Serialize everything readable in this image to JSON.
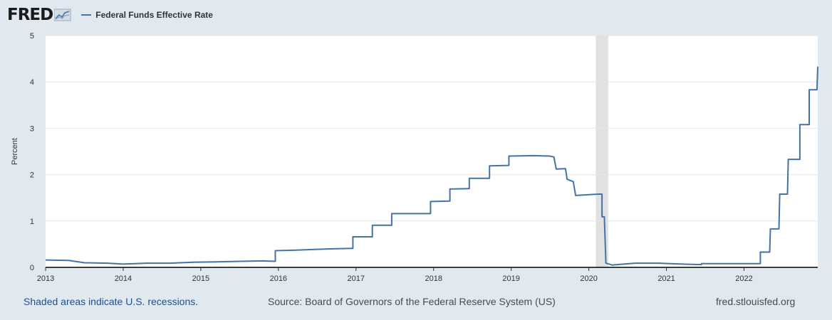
{
  "header": {
    "logo_text": "FRED",
    "legend_label": "Federal Funds Effective Rate"
  },
  "footer": {
    "recession_note": "Shaded areas indicate U.S. recessions.",
    "source": "Source: Board of Governors of the Federal Reserve System (US)",
    "site": "fred.stlouisfed.org"
  },
  "colors": {
    "series": "#4572a7",
    "background": "#e1e9f0",
    "plot": "#ffffff",
    "recession": "#e1e1e1"
  },
  "chart_data": {
    "type": "line",
    "title": "Federal Funds Effective Rate",
    "ylabel": "Percent",
    "xlabel": "",
    "xlim": [
      2013.0,
      2022.95
    ],
    "ylim": [
      0,
      5
    ],
    "x_ticks": [
      "2013",
      "2014",
      "2015",
      "2016",
      "2017",
      "2018",
      "2019",
      "2020",
      "2021",
      "2022"
    ],
    "y_ticks": [
      "0",
      "1",
      "2",
      "3",
      "4",
      "5"
    ],
    "grid": "horizontal",
    "recessions": [
      [
        2020.09,
        2020.25
      ]
    ],
    "series": [
      {
        "name": "Federal Funds Effective Rate",
        "points": [
          [
            2013.0,
            0.16
          ],
          [
            2013.3,
            0.15
          ],
          [
            2013.5,
            0.1
          ],
          [
            2013.8,
            0.09
          ],
          [
            2014.0,
            0.07
          ],
          [
            2014.3,
            0.09
          ],
          [
            2014.6,
            0.09
          ],
          [
            2014.9,
            0.11
          ],
          [
            2015.2,
            0.12
          ],
          [
            2015.5,
            0.13
          ],
          [
            2015.8,
            0.14
          ],
          [
            2015.96,
            0.13
          ],
          [
            2015.96,
            0.36
          ],
          [
            2016.2,
            0.37
          ],
          [
            2016.5,
            0.39
          ],
          [
            2016.7,
            0.4
          ],
          [
            2016.96,
            0.41
          ],
          [
            2016.96,
            0.66
          ],
          [
            2017.2,
            0.66
          ],
          [
            2017.21,
            0.66
          ],
          [
            2017.21,
            0.91
          ],
          [
            2017.45,
            0.91
          ],
          [
            2017.46,
            0.91
          ],
          [
            2017.46,
            1.16
          ],
          [
            2017.96,
            1.16
          ],
          [
            2017.96,
            1.42
          ],
          [
            2018.21,
            1.43
          ],
          [
            2018.21,
            1.69
          ],
          [
            2018.45,
            1.7
          ],
          [
            2018.46,
            1.7
          ],
          [
            2018.46,
            1.92
          ],
          [
            2018.72,
            1.92
          ],
          [
            2018.72,
            2.19
          ],
          [
            2018.97,
            2.2
          ],
          [
            2018.97,
            2.4
          ],
          [
            2019.3,
            2.41
          ],
          [
            2019.5,
            2.4
          ],
          [
            2019.55,
            2.38
          ],
          [
            2019.58,
            2.12
          ],
          [
            2019.7,
            2.13
          ],
          [
            2019.72,
            1.9
          ],
          [
            2019.8,
            1.85
          ],
          [
            2019.83,
            1.55
          ],
          [
            2020.12,
            1.58
          ],
          [
            2020.17,
            1.58
          ],
          [
            2020.17,
            1.09
          ],
          [
            2020.2,
            1.09
          ],
          [
            2020.22,
            0.09
          ],
          [
            2020.3,
            0.05
          ],
          [
            2020.45,
            0.07
          ],
          [
            2020.6,
            0.09
          ],
          [
            2020.9,
            0.09
          ],
          [
            2021.2,
            0.07
          ],
          [
            2021.45,
            0.06
          ],
          [
            2021.45,
            0.08
          ],
          [
            2021.9,
            0.08
          ],
          [
            2022.21,
            0.08
          ],
          [
            2022.21,
            0.33
          ],
          [
            2022.33,
            0.33
          ],
          [
            2022.34,
            0.83
          ],
          [
            2022.45,
            0.83
          ],
          [
            2022.46,
            1.58
          ],
          [
            2022.56,
            1.58
          ],
          [
            2022.57,
            2.33
          ],
          [
            2022.72,
            2.33
          ],
          [
            2022.72,
            3.08
          ],
          [
            2022.84,
            3.08
          ],
          [
            2022.84,
            3.83
          ],
          [
            2022.94,
            3.83
          ],
          [
            2022.95,
            4.33
          ]
        ]
      }
    ]
  }
}
